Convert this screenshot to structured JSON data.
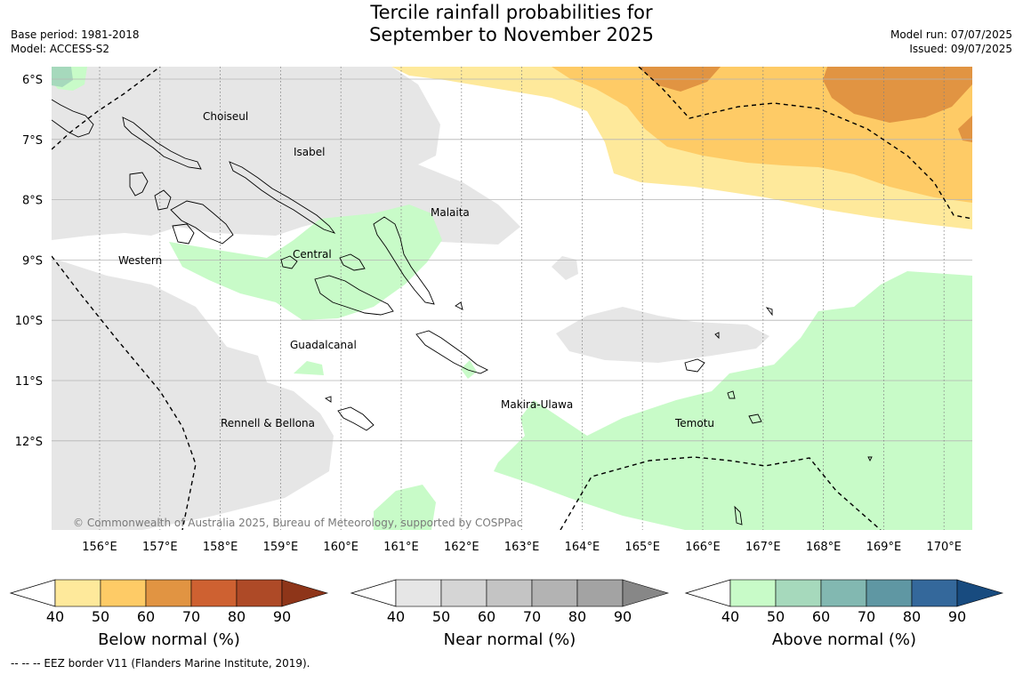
{
  "title": {
    "line1": "Tercile rainfall probabilities for",
    "line2": "September to November 2025"
  },
  "meta": {
    "base_period": "Base period: 1981-2018",
    "model": "Model: ACCESS-S2",
    "model_run": "Model run: 07/07/2025",
    "issued": "Issued: 09/07/2025"
  },
  "map": {
    "lat_labels": [
      "6°S",
      "7°S",
      "8°S",
      "9°S",
      "10°S",
      "11°S",
      "12°S"
    ],
    "lon_labels": [
      "156°E",
      "157°E",
      "158°E",
      "159°E",
      "160°E",
      "161°E",
      "162°E",
      "163°E",
      "164°E",
      "165°E",
      "166°E",
      "167°E",
      "168°E",
      "169°E",
      "170°E"
    ],
    "region_labels": [
      "Choiseul",
      "Isabel",
      "Malaita",
      "Western",
      "Central",
      "Guadalcanal",
      "Makira-Ulawa",
      "Rennell & Bellona",
      "Temotu"
    ],
    "copyright": "© Commonwealth of Australia 2025, Bureau of Meteorology, supported by COSPPac"
  },
  "legends": {
    "ticks": [
      "40",
      "50",
      "60",
      "70",
      "80",
      "90"
    ],
    "below": {
      "label": "Below normal (%)",
      "colors": [
        "#fee99b",
        "#fecb66",
        "#e19442",
        "#ce6131",
        "#ae4a27",
        "#8e3519"
      ]
    },
    "near": {
      "label": "Near normal (%)",
      "colors": [
        "#e6e6e6",
        "#d5d5d5",
        "#c4c4c4",
        "#b3b3b3",
        "#a3a3a3",
        "#878787"
      ]
    },
    "above": {
      "label": "Above normal (%)",
      "colors": [
        "#c8fbc8",
        "#a6d9bc",
        "#82b8b1",
        "#5f97a3",
        "#34689b",
        "#184b7f"
      ]
    }
  },
  "footnote": "--  --  -- EEZ border V11 (Flanders Marine Institute, 2019)."
}
